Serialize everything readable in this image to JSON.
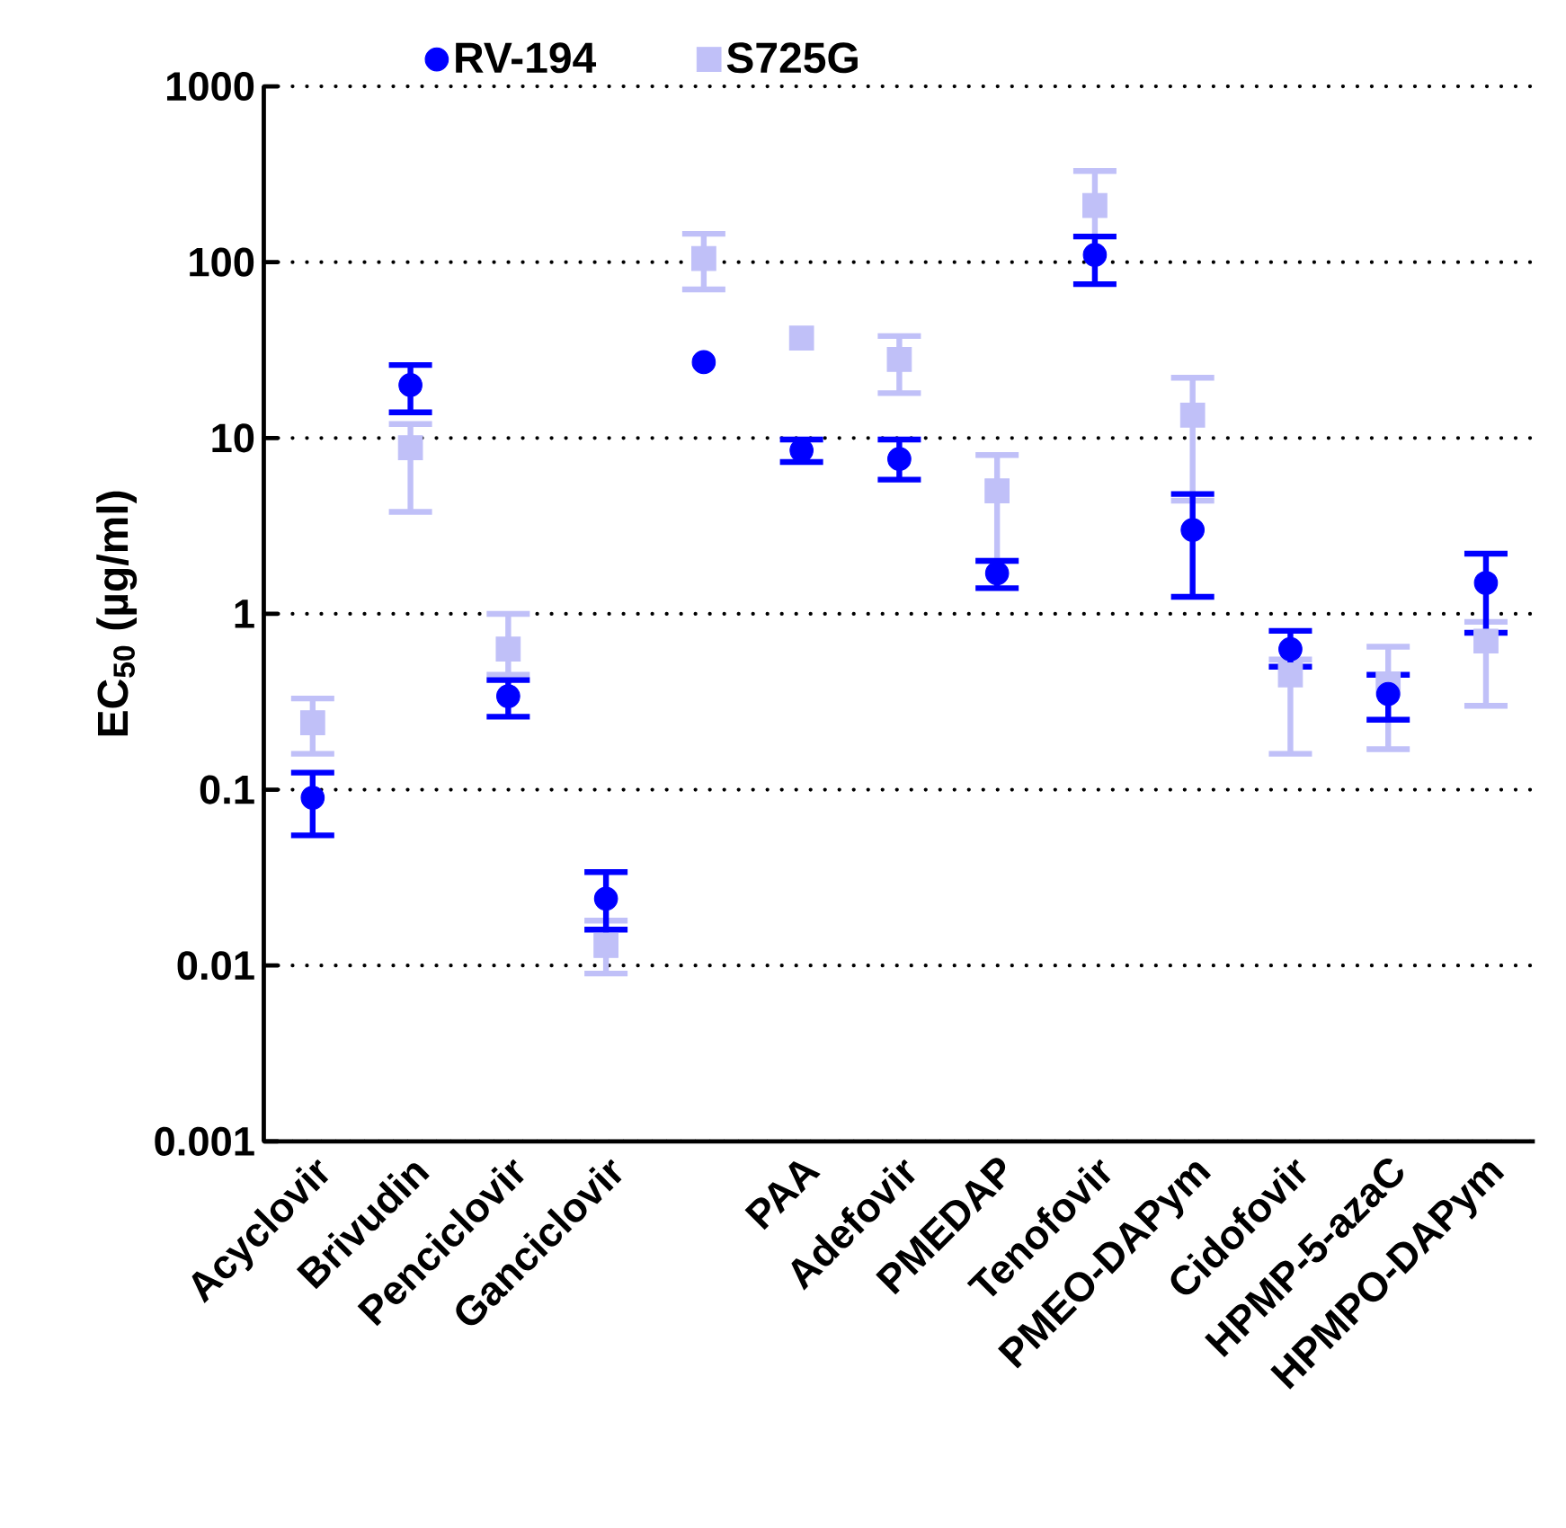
{
  "chart_data": {
    "type": "scatter",
    "ylabel": "EC$_{50}$ (µg/ml)",
    "categories": [
      "Acyclovir",
      "Brivudin",
      "Penciclovir",
      "Ganciclovir",
      null,
      "PAA",
      "Adefovir",
      "PMEDAP",
      "Tenofovir",
      "PMEO-DAPym",
      "Cidofovir",
      "HPMP-5-azaC",
      "HPMPO-DAPym"
    ],
    "series": [
      {
        "name": "RV-194",
        "color": "#0000ff",
        "marker": "circle",
        "values": [
          0.09,
          20,
          0.34,
          0.024,
          27,
          8.5,
          7.6,
          1.7,
          110,
          3.0,
          0.63,
          0.35,
          1.5
        ],
        "errors": [
          [
            0.055,
            0.125
          ],
          [
            14,
            26
          ],
          [
            0.26,
            0.42
          ],
          [
            0.016,
            0.034
          ],
          null,
          [
            7.3,
            9.8
          ],
          [
            5.8,
            9.8
          ],
          [
            1.4,
            2.0
          ],
          [
            75,
            140
          ],
          [
            1.25,
            4.8
          ],
          [
            0.5,
            0.8
          ],
          [
            0.25,
            0.45
          ],
          [
            0.78,
            2.2
          ]
        ]
      },
      {
        "name": "S725G",
        "color": "#c0c0f8",
        "marker": "square",
        "values": [
          0.24,
          8.8,
          0.63,
          0.013,
          105,
          37,
          28,
          5.0,
          210,
          13.5,
          0.45,
          0.4,
          0.7
        ],
        "errors": [
          [
            0.16,
            0.33
          ],
          [
            3.8,
            12
          ],
          [
            0.45,
            1.0
          ],
          [
            0.009,
            0.018
          ],
          [
            70,
            145
          ],
          null,
          [
            18,
            38
          ],
          [
            2.0,
            8.0
          ],
          [
            140,
            330
          ],
          [
            4.4,
            22
          ],
          [
            0.16,
            0.55
          ],
          [
            0.17,
            0.65
          ],
          [
            0.3,
            0.9
          ]
        ]
      }
    ],
    "log": "y",
    "ylim": [
      0.001,
      1000
    ],
    "yticks": [
      0.001,
      0.01,
      0.1,
      1,
      10,
      100,
      1000
    ],
    "grid": "y",
    "legend": "top"
  }
}
